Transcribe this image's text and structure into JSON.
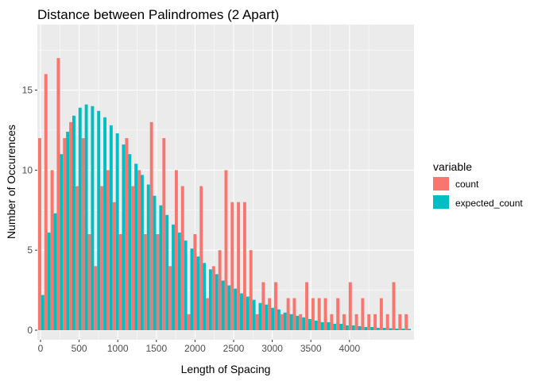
{
  "chart_data": {
    "type": "bar",
    "title": "Distance between Palindromes (2 Apart)",
    "xlabel": "Length of Spacing",
    "ylabel": "Number of Occurences",
    "x_ticks": [
      "0",
      "500",
      "1000",
      "1500",
      "2000",
      "2500",
      "3000",
      "3500",
      "4000"
    ],
    "y_ticks": [
      "0",
      "5",
      "10",
      "15"
    ],
    "ylim": [
      0,
      18
    ],
    "grid": true,
    "legend_position": "right",
    "legend_title": "variable",
    "series": [
      {
        "name": "count",
        "color": "#F8766D",
        "values": [
          12,
          16,
          10,
          17,
          12,
          13,
          9,
          12,
          6,
          4,
          9,
          10,
          8,
          6,
          12,
          9,
          10,
          6,
          13,
          6,
          12,
          4,
          10,
          9,
          1,
          6,
          9,
          2,
          4,
          5,
          10,
          8,
          8,
          8,
          5,
          1,
          3,
          2,
          3,
          1,
          2,
          2,
          1,
          3,
          2,
          2,
          2,
          1,
          2,
          1,
          3,
          1,
          2,
          1,
          1,
          2,
          1,
          3,
          1,
          1
        ]
      },
      {
        "name": "expected_count",
        "color": "#00BFC4",
        "values": [
          2.2,
          6.1,
          7.3,
          11.0,
          12.4,
          13.4,
          13.9,
          14.1,
          14.0,
          13.7,
          13.3,
          12.8,
          12.3,
          11.6,
          11.0,
          10.4,
          9.7,
          9.1,
          8.4,
          7.8,
          7.2,
          6.6,
          6.1,
          5.6,
          5.1,
          4.6,
          4.2,
          3.8,
          3.5,
          3.1,
          2.8,
          2.6,
          2.3,
          2.1,
          1.9,
          1.7,
          1.6,
          1.4,
          1.3,
          1.1,
          1.0,
          0.9,
          0.8,
          0.7,
          0.6,
          0.5,
          0.5,
          0.4,
          0.4,
          0.3,
          0.3,
          0.25,
          0.2,
          0.2,
          0.15,
          0.15,
          0.12,
          0.1,
          0.1,
          0.08
        ]
      }
    ]
  }
}
